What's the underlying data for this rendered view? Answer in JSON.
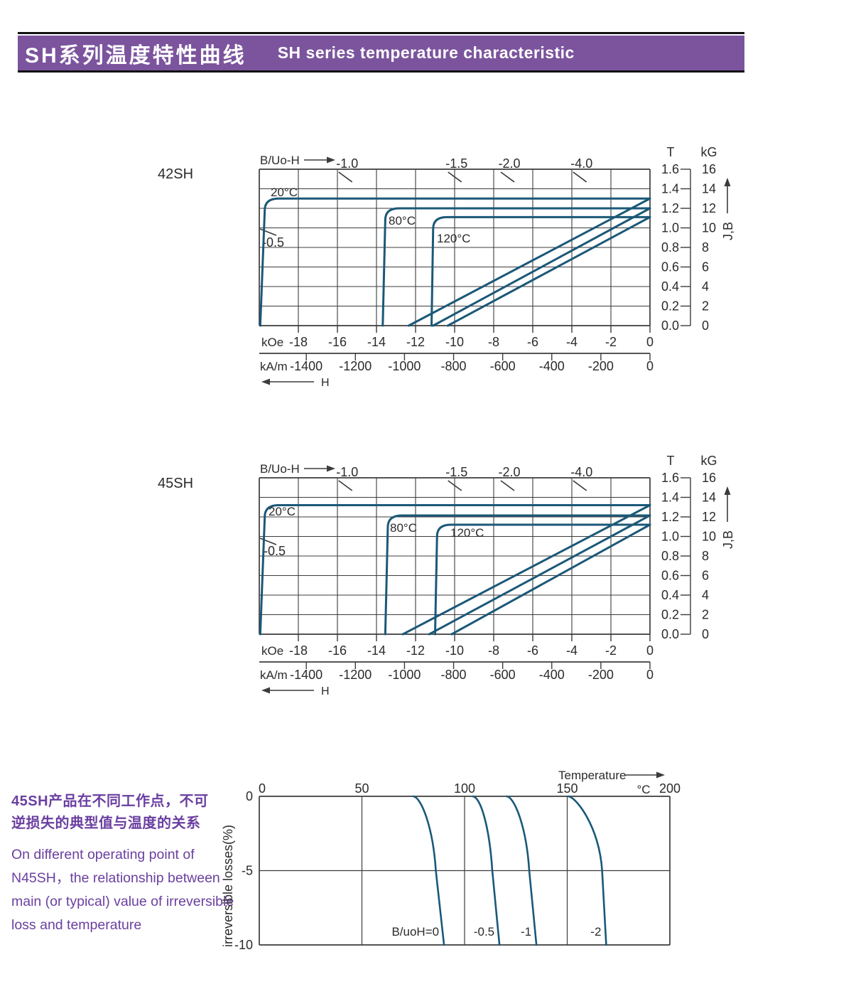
{
  "header": {
    "title_zh": "SH系列温度特性曲线",
    "title_en": "SH  series temperature characteristic",
    "band_color": "#7b549d",
    "rule_color": "#111111"
  },
  "side_note": {
    "color": "#6a3fa0",
    "zh_lines": [
      "45SH产品在不同工作点，不可",
      "逆损失的典型值与温度的关系"
    ],
    "en_lines": [
      "On different operating point of",
      "N45SH，the relationship between",
      "main (or typical) value of irreversible",
      "loss and temperature"
    ]
  },
  "colors": {
    "curve": "#1b5878",
    "grid": "#3c3c3c",
    "text": "#2b2b2b"
  },
  "chart_data": [
    {
      "id": "demag-42SH",
      "type": "line",
      "title": "42SH",
      "top_axis_label": "B/Uo-H",
      "h_axis": {
        "unit_primary": "kOe",
        "ticks_primary": [
          -18,
          -16,
          -14,
          -12,
          -10,
          -8,
          -6,
          -4,
          -2,
          0
        ],
        "unit_secondary": "kA/m",
        "ticks_secondary": [
          -1400,
          -1200,
          -1000,
          -800,
          -600,
          -400,
          -200,
          0
        ],
        "range_kOe": [
          -20,
          0
        ],
        "arrow_label": "H"
      },
      "v_axis": {
        "unit_left": "T",
        "ticks_left": [
          "1.6",
          "1.4",
          "1.2",
          "1.0",
          "0.8",
          "0.6",
          "0.4",
          "0.2",
          "0.0"
        ],
        "unit_right": "kG",
        "ticks_right": [
          16,
          14,
          12,
          10,
          8,
          6,
          4,
          2,
          0
        ],
        "range_kG": [
          0,
          16
        ],
        "arrow_label": "J,B"
      },
      "load_lines": {
        "labels": [
          "-1.0",
          "-1.5",
          "-2.0",
          "-4.0"
        ],
        "anchors_kOe": [
          -15.5,
          -9.9,
          -7.2,
          -3.5
        ],
        "low_label": "-0.5"
      },
      "series": [
        {
          "name": "20°C",
          "Br_kG": 13.0,
          "Hk_kOe": -19.0,
          "Hcj_kOe": -19.72,
          "Hcj_bottom_kOe": -19.95,
          "Hcb_kOe": -12.35
        },
        {
          "name": "80°C",
          "Br_kG": 12.0,
          "Hk_kOe": -12.85,
          "Hcj_kOe": -13.55,
          "Hcj_bottom_kOe": -13.68,
          "Hcb_kOe": -11.1
        },
        {
          "name": "120°C",
          "Br_kG": 11.1,
          "Hk_kOe": -10.4,
          "Hcj_kOe": -11.1,
          "Hcj_bottom_kOe": -11.18,
          "Hcb_kOe": -10.35
        }
      ]
    },
    {
      "id": "demag-45SH",
      "type": "line",
      "title": "45SH",
      "top_axis_label": "B/Uo-H",
      "h_axis": {
        "unit_primary": "kOe",
        "ticks_primary": [
          -18,
          -16,
          -14,
          -12,
          -10,
          -8,
          -6,
          -4,
          -2,
          0
        ],
        "unit_secondary": "kA/m",
        "ticks_secondary": [
          -1400,
          -1200,
          -1000,
          -800,
          -600,
          -400,
          -200,
          0
        ],
        "range_kOe": [
          -20,
          0
        ],
        "arrow_label": "H"
      },
      "v_axis": {
        "unit_left": "T",
        "ticks_left": [
          "1.6",
          "1.4",
          "1.2",
          "1.0",
          "0.8",
          "0.6",
          "0.4",
          "0.2",
          "0.0"
        ],
        "unit_right": "kG",
        "ticks_right": [
          16,
          14,
          12,
          10,
          8,
          6,
          4,
          2,
          0
        ],
        "range_kG": [
          0,
          16
        ],
        "arrow_label": "J,B"
      },
      "load_lines": {
        "labels": [
          "-1.0",
          "-1.5",
          "-2.0",
          "-4.0"
        ],
        "anchors_kOe": [
          -15.5,
          -9.9,
          -7.2,
          -3.5
        ],
        "low_label": "-0.5"
      },
      "series": [
        {
          "name": "20°C",
          "Br_kG": 13.2,
          "Hk_kOe": -19.0,
          "Hcj_kOe": -19.72,
          "Hcj_bottom_kOe": -19.95,
          "Hcb_kOe": -12.65
        },
        {
          "name": "80°C",
          "Br_kG": 12.15,
          "Hk_kOe": -12.7,
          "Hcj_kOe": -13.42,
          "Hcj_bottom_kOe": -13.55,
          "Hcb_kOe": -11.3
        },
        {
          "name": "120°C",
          "Br_kG": 11.2,
          "Hk_kOe": -10.2,
          "Hcj_kOe": -10.9,
          "Hcj_bottom_kOe": -11.0,
          "Hcb_kOe": -10.15
        }
      ]
    },
    {
      "id": "irreversible-loss",
      "type": "line",
      "top_label": "Temperature",
      "x_axis": {
        "ticks": [
          0,
          50,
          100,
          150,
          200
        ],
        "unit": "°C",
        "range": [
          0,
          200
        ]
      },
      "y_axis": {
        "label": "irreversible  losses(%)",
        "ticks": [
          0,
          -5,
          -10
        ],
        "range": [
          0,
          -10
        ]
      },
      "series": [
        {
          "label": "B/uoH=0",
          "T_at_0pct": 75,
          "T_at_minus5pct": 86,
          "T_at_minus10pct": 90
        },
        {
          "label": "-0.5",
          "T_at_0pct": 104,
          "T_at_minus5pct": 113.5,
          "T_at_minus10pct": 117
        },
        {
          "label": "-1",
          "T_at_0pct": 120.5,
          "T_at_minus5pct": 131.5,
          "T_at_minus10pct": 135
        },
        {
          "label": "-2",
          "T_at_0pct": 150.5,
          "T_at_minus5pct": 167,
          "T_at_minus10pct": 169
        }
      ]
    }
  ]
}
